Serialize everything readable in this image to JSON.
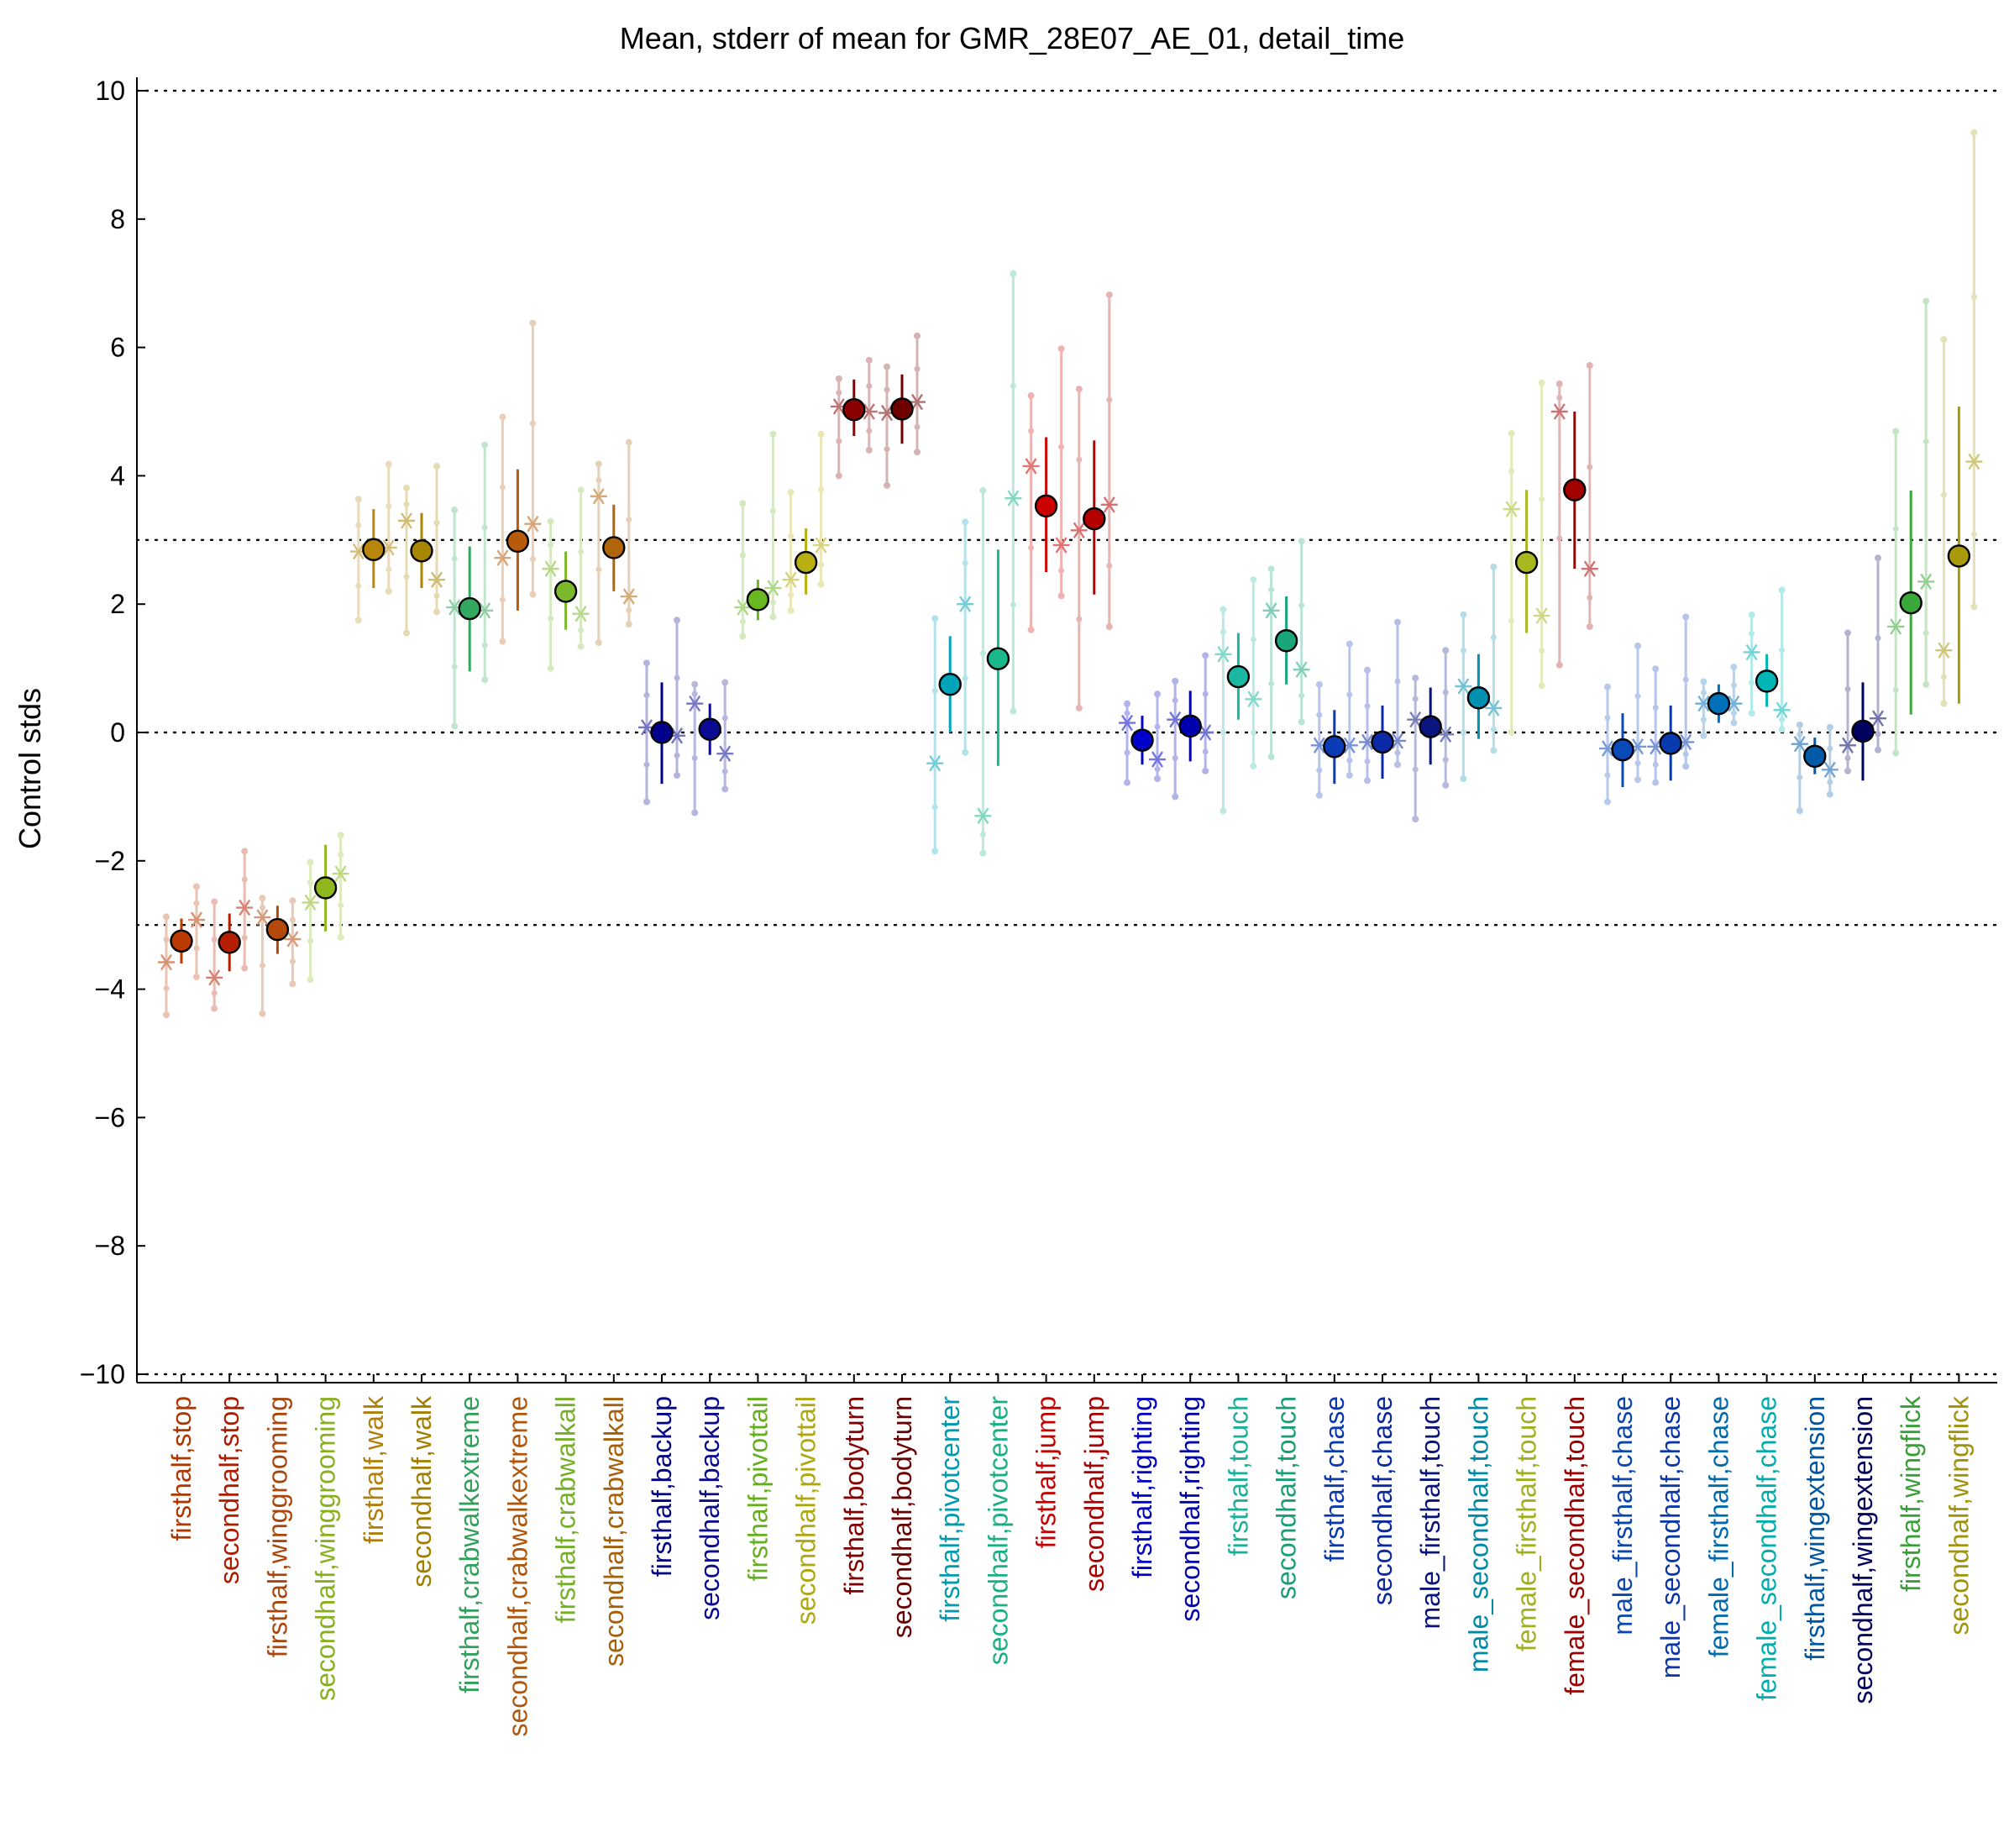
{
  "chart_data": {
    "type": "scatter",
    "title": "Mean, stderr of mean for GMR_28E07_AE_01, detail_time",
    "xlabel": "",
    "ylabel": "Control stds",
    "ylim": [
      -10,
      10
    ],
    "yticks": [
      -10,
      -8,
      -6,
      -4,
      -2,
      0,
      2,
      4,
      6,
      8,
      10
    ],
    "yticklabels": [
      "−10",
      "−8",
      "−6",
      "−4",
      "−2",
      "0",
      "2",
      "4",
      "6",
      "8",
      "10"
    ],
    "reference_lines": [
      -10,
      -3,
      0,
      3,
      10
    ],
    "grid": false,
    "legend": "none",
    "categories": [
      "firsthalf,stop",
      "secondhalf,stop",
      "firsthalf,winggrooming",
      "secondhalf,winggrooming",
      "firsthalf,walk",
      "secondhalf,walk",
      "firsthalf,crabwalkextreme",
      "secondhalf,crabwalkextreme",
      "firsthalf,crabwalkall",
      "secondhalf,crabwalkall",
      "firsthalf,backup",
      "secondhalf,backup",
      "firsthalf,pivottail",
      "secondhalf,pivottail",
      "firsthalf,bodyturn",
      "secondhalf,bodyturn",
      "firsthalf,pivotcenter",
      "secondhalf,pivotcenter",
      "firsthalf,jump",
      "secondhalf,jump",
      "firsthalf,righting",
      "secondhalf,righting",
      "firsthalf,touch",
      "secondhalf,touch",
      "firsthalf,chase",
      "secondhalf,chase",
      "male_firsthalf,touch",
      "male_secondhalf,touch",
      "female_firsthalf,touch",
      "female_secondhalf,touch",
      "male_firsthalf,chase",
      "male_secondhalf,chase",
      "female_firsthalf,chase",
      "female_secondhalf,chase",
      "firsthalf,wingextension",
      "secondhalf,wingextension",
      "firsthalf,wingflick",
      "secondhalf,wingflick"
    ],
    "colors": [
      "#b83a00",
      "#b51e00",
      "#b34a0c",
      "#8fb81f",
      "#b8860b",
      "#a88600",
      "#33a860",
      "#b85a0c",
      "#7bb82a",
      "#b0650a",
      "#00008b",
      "#0a0a94",
      "#6ab821",
      "#b8b010",
      "#8b0000",
      "#6e0000",
      "#00a3b8",
      "#1ab88a",
      "#cc0000",
      "#b30000",
      "#0000cc",
      "#0000b0",
      "#1ab8a0",
      "#1aa57a",
      "#0a3cb8",
      "#0a2aa8",
      "#0a1580",
      "#0090b0",
      "#a8b820",
      "#a30000",
      "#0a4ab8",
      "#0a3ab0",
      "#0070b8",
      "#00b5b5",
      "#005aa8",
      "#000060",
      "#3aa83a",
      "#a89a0a"
    ],
    "mean": [
      -3.25,
      -3.27,
      -3.07,
      -2.42,
      2.85,
      2.83,
      1.93,
      2.98,
      2.2,
      2.88,
      0.0,
      0.05,
      2.07,
      2.65,
      5.03,
      5.04,
      0.75,
      1.15,
      3.53,
      3.33,
      -0.12,
      0.1,
      0.87,
      1.43,
      -0.22,
      -0.15,
      0.09,
      0.54,
      2.65,
      3.78,
      -0.27,
      -0.17,
      0.45,
      0.8,
      -0.37,
      0.02,
      2.02,
      2.75
    ],
    "stderr_low": [
      -3.6,
      -3.72,
      -3.45,
      -3.1,
      2.25,
      2.25,
      0.95,
      1.9,
      1.6,
      2.2,
      -0.8,
      -0.35,
      1.75,
      2.15,
      4.62,
      4.5,
      0.0,
      -0.52,
      2.5,
      2.15,
      -0.5,
      -0.45,
      0.2,
      0.75,
      -0.8,
      -0.72,
      -0.5,
      -0.1,
      1.55,
      2.55,
      -0.85,
      -0.75,
      0.15,
      0.4,
      -0.65,
      -0.75,
      0.28,
      0.45
    ],
    "stderr_high": [
      -2.9,
      -2.82,
      -2.7,
      -1.75,
      3.48,
      3.42,
      2.9,
      4.1,
      2.82,
      3.55,
      0.78,
      0.45,
      2.38,
      3.18,
      5.5,
      5.58,
      1.5,
      2.85,
      4.6,
      4.55,
      0.26,
      0.65,
      1.55,
      2.12,
      0.35,
      0.42,
      0.7,
      1.22,
      3.78,
      5.0,
      0.3,
      0.42,
      0.75,
      1.22,
      -0.08,
      0.78,
      3.77,
      5.08
    ],
    "individual_means": [
      [
        -3.58,
        -2.92
      ],
      [
        -3.82,
        -2.73
      ],
      [
        -2.88,
        -3.22
      ],
      [
        -2.65,
        -2.2
      ],
      [
        2.82,
        2.88
      ],
      [
        3.3,
        2.38
      ],
      [
        1.95,
        1.9
      ],
      [
        2.72,
        3.25
      ],
      [
        2.55,
        1.85
      ],
      [
        3.68,
        2.12
      ],
      [
        0.08,
        -0.05
      ],
      [
        0.45,
        -0.33
      ],
      [
        1.95,
        2.25
      ],
      [
        2.38,
        2.92
      ],
      [
        5.08,
        5.0
      ],
      [
        4.98,
        5.15
      ],
      [
        -0.48,
        2.0
      ],
      [
        -1.3,
        3.65
      ],
      [
        4.15,
        2.92
      ],
      [
        3.15,
        3.55
      ],
      [
        0.15,
        -0.42
      ],
      [
        0.2,
        0.0
      ],
      [
        1.22,
        0.52
      ],
      [
        1.9,
        0.98
      ],
      [
        -0.2,
        -0.2
      ],
      [
        -0.15,
        -0.13
      ],
      [
        0.2,
        -0.03
      ],
      [
        0.72,
        0.38
      ],
      [
        3.48,
        1.82
      ],
      [
        5.0,
        2.55
      ],
      [
        -0.25,
        -0.22
      ],
      [
        -0.22,
        -0.15
      ],
      [
        0.45,
        0.45
      ],
      [
        1.25,
        0.35
      ],
      [
        -0.18,
        -0.58
      ],
      [
        -0.2,
        0.22
      ],
      [
        1.65,
        2.35
      ],
      [
        1.28,
        4.22
      ]
    ],
    "individual_ranges": [
      [
        -4.4,
        -2.4
      ],
      [
        -4.3,
        -1.85
      ],
      [
        -4.38,
        -2.62
      ],
      [
        -3.85,
        -1.6
      ],
      [
        1.75,
        4.18
      ],
      [
        1.55,
        4.15
      ],
      [
        0.1,
        4.48
      ],
      [
        1.42,
        6.38
      ],
      [
        1.0,
        3.78
      ],
      [
        1.4,
        4.52
      ],
      [
        -1.08,
        1.75
      ],
      [
        -1.25,
        0.78
      ],
      [
        1.5,
        4.65
      ],
      [
        1.9,
        4.65
      ],
      [
        4.0,
        5.8
      ],
      [
        3.85,
        6.18
      ],
      [
        -1.85,
        3.28
      ],
      [
        -1.88,
        7.15
      ],
      [
        1.6,
        5.98
      ],
      [
        0.38,
        6.82
      ],
      [
        -0.78,
        0.6
      ],
      [
        -1.0,
        1.2
      ],
      [
        -1.22,
        2.38
      ],
      [
        -0.38,
        2.98
      ],
      [
        -0.98,
        1.38
      ],
      [
        -0.75,
        1.72
      ],
      [
        -1.35,
        1.28
      ],
      [
        -0.72,
        2.58
      ],
      [
        0.0,
        5.45
      ],
      [
        1.05,
        5.72
      ],
      [
        -1.08,
        1.35
      ],
      [
        -0.78,
        1.8
      ],
      [
        -0.05,
        1.02
      ],
      [
        0.3,
        2.22
      ],
      [
        -1.22,
        0.08
      ],
      [
        -0.6,
        2.72
      ],
      [
        -0.32,
        6.72
      ],
      [
        0.45,
        9.35
      ]
    ]
  }
}
